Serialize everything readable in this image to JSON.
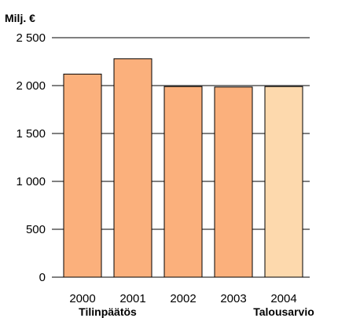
{
  "chart_data": {
    "type": "bar",
    "unit_label": "Milj. €",
    "categories": [
      "2000",
      "2001",
      "2002",
      "2003",
      "2004"
    ],
    "values": [
      2120,
      2280,
      1990,
      1985,
      1990
    ],
    "bar_colors": [
      "#fbb07c",
      "#fbb07c",
      "#fbb07c",
      "#fbb07c",
      "#fdd9ad"
    ],
    "ylim": [
      0,
      2500
    ],
    "yticks": [
      0,
      500,
      1000,
      1500,
      2000,
      2500
    ],
    "ytick_labels": [
      "0",
      "500",
      "1 000",
      "1 500",
      "2 000",
      "2 500"
    ],
    "grid": true,
    "group_labels": [
      {
        "text": "Tilinpäätös",
        "categories": [
          "2000",
          "2001"
        ]
      },
      {
        "text": "Talousarvio",
        "categories": [
          "2004"
        ]
      }
    ]
  }
}
